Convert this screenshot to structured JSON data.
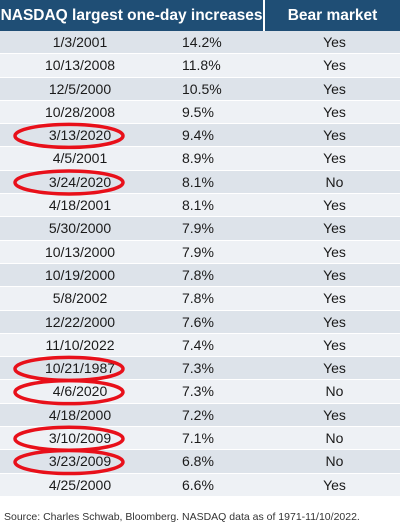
{
  "chart_data": {
    "type": "table",
    "columns": [
      "NASDAQ largest one-day increases",
      "Bear market"
    ],
    "rows": [
      {
        "date": "1/3/2001",
        "pct": "14.2%",
        "bear": "Yes",
        "circled": false
      },
      {
        "date": "10/13/2008",
        "pct": "11.8%",
        "bear": "Yes",
        "circled": false
      },
      {
        "date": "12/5/2000",
        "pct": "10.5%",
        "bear": "Yes",
        "circled": false
      },
      {
        "date": "10/28/2008",
        "pct": "9.5%",
        "bear": "Yes",
        "circled": false
      },
      {
        "date": "3/13/2020",
        "pct": "9.4%",
        "bear": "Yes",
        "circled": true
      },
      {
        "date": "4/5/2001",
        "pct": "8.9%",
        "bear": "Yes",
        "circled": false
      },
      {
        "date": "3/24/2020",
        "pct": "8.1%",
        "bear": "No",
        "circled": true
      },
      {
        "date": "4/18/2001",
        "pct": "8.1%",
        "bear": "Yes",
        "circled": false
      },
      {
        "date": "5/30/2000",
        "pct": "7.9%",
        "bear": "Yes",
        "circled": false
      },
      {
        "date": "10/13/2000",
        "pct": "7.9%",
        "bear": "Yes",
        "circled": false
      },
      {
        "date": "10/19/2000",
        "pct": "7.8%",
        "bear": "Yes",
        "circled": false
      },
      {
        "date": "5/8/2002",
        "pct": "7.8%",
        "bear": "Yes",
        "circled": false
      },
      {
        "date": "12/22/2000",
        "pct": "7.6%",
        "bear": "Yes",
        "circled": false
      },
      {
        "date": "11/10/2022",
        "pct": "7.4%",
        "bear": "Yes",
        "circled": false
      },
      {
        "date": "10/21/1987",
        "pct": "7.3%",
        "bear": "Yes",
        "circled": true
      },
      {
        "date": "4/6/2020",
        "pct": "7.3%",
        "bear": "No",
        "circled": true
      },
      {
        "date": "4/18/2000",
        "pct": "7.2%",
        "bear": "Yes",
        "circled": false
      },
      {
        "date": "3/10/2009",
        "pct": "7.1%",
        "bear": "No",
        "circled": true
      },
      {
        "date": "3/23/2009",
        "pct": "6.8%",
        "bear": "No",
        "circled": true
      },
      {
        "date": "4/25/2000",
        "pct": "6.6%",
        "bear": "Yes",
        "circled": false
      }
    ]
  },
  "source": "Source: Charles Schwab, Bloomberg. NASDAQ data as of 1971-11/10/2022.",
  "colors": {
    "header_bg": "#1f4e75",
    "row_dark": "#dde3ea",
    "row_light": "#eef1f5",
    "circle": "#e8101a"
  }
}
